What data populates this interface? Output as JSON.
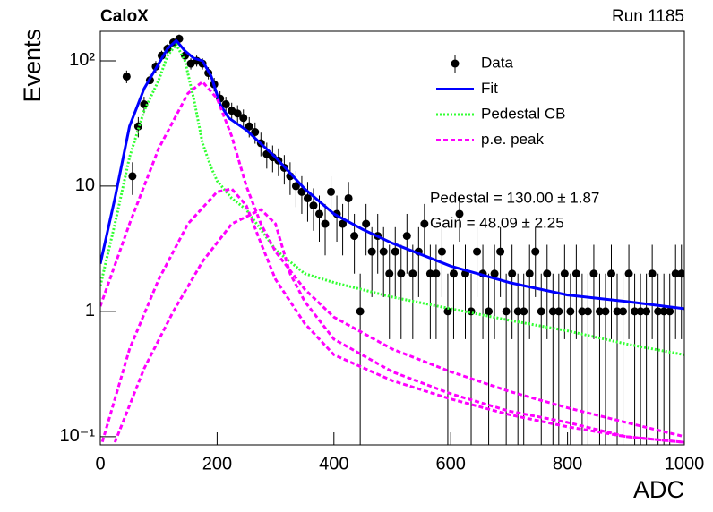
{
  "chart_data": {
    "type": "errorbar",
    "title": "CaloX",
    "subtitle": "Run 1185",
    "x_label": "ADC",
    "y_label": "Events",
    "log_y": true,
    "xlim": [
      0,
      1000
    ],
    "ylim": [
      0.086,
      172
    ],
    "xticks": [
      0,
      200,
      400,
      600,
      800,
      1000
    ],
    "yticks": [
      {
        "value": 0.1,
        "label": "10⁻¹"
      },
      1,
      10,
      {
        "value": 100,
        "label": "10²"
      }
    ],
    "annotations": [
      "Pedestal = 130.00 ± 1.87",
      "Gain = 48.09 ± 2.25"
    ],
    "series": [
      {
        "name": "Data",
        "color": "#000000",
        "style": "points",
        "x": [
          45,
          55,
          65,
          75,
          85,
          95,
          105,
          115,
          125,
          135,
          145,
          155,
          165,
          175,
          185,
          195,
          205,
          215,
          225,
          235,
          245,
          255,
          265,
          275,
          285,
          295,
          305,
          315,
          325,
          335,
          345,
          355,
          365,
          375,
          385,
          395,
          405,
          415,
          425,
          435,
          445,
          455,
          465,
          475,
          485,
          495,
          505,
          515,
          525,
          535,
          545,
          555,
          565,
          575,
          585,
          595,
          605,
          615,
          625,
          635,
          645,
          655,
          665,
          675,
          685,
          695,
          705,
          715,
          725,
          735,
          745,
          755,
          765,
          775,
          785,
          795,
          805,
          815,
          825,
          835,
          845,
          855,
          865,
          875,
          885,
          895,
          905,
          915,
          925,
          935,
          945,
          955,
          965,
          975,
          985,
          995
        ],
        "values": [
          75,
          12,
          30,
          45,
          70,
          90,
          110,
          125,
          140,
          150,
          110,
          95,
          100,
          95,
          80,
          65,
          50,
          45,
          40,
          38,
          35,
          30,
          27,
          22,
          18,
          17,
          16,
          14,
          12,
          10,
          9,
          8,
          7,
          6,
          5,
          9,
          6,
          5,
          8,
          4,
          1,
          5,
          3,
          4,
          3,
          2,
          3,
          2,
          4,
          2,
          3,
          5,
          2,
          2,
          3,
          1,
          2,
          6,
          2,
          1,
          3,
          2,
          1,
          2,
          3,
          1,
          2,
          1,
          1,
          2,
          3,
          1,
          2,
          1,
          1,
          2,
          1,
          2,
          1,
          1,
          2,
          1,
          1,
          2,
          1,
          1,
          2,
          1,
          1,
          1,
          2,
          1,
          1,
          1,
          2,
          2
        ],
        "errors": [
          8.7,
          3.5,
          5.5,
          6.7,
          8.4,
          9.5,
          10.5,
          11.2,
          11.8,
          12.2,
          10.5,
          9.7,
          10,
          9.7,
          8.9,
          8.1,
          7.1,
          6.7,
          6.3,
          6.2,
          5.9,
          5.5,
          5.2,
          4.7,
          4.2,
          4.1,
          4,
          3.7,
          3.5,
          3.2,
          3,
          2.8,
          2.6,
          2.4,
          2.2,
          3,
          2.4,
          2.2,
          2.8,
          2,
          1,
          2.2,
          1.7,
          2,
          1.7,
          1.4,
          1.7,
          1.4,
          2,
          1.4,
          1.7,
          2.2,
          1.4,
          1.4,
          1.7,
          1,
          1.4,
          2.4,
          1.4,
          1,
          1.7,
          1.4,
          1,
          1.4,
          1.7,
          1,
          1.4,
          1,
          1,
          1.4,
          1.7,
          1,
          1.4,
          1,
          1,
          1.4,
          1,
          1.4,
          1,
          1,
          1.4,
          1,
          1,
          1.4,
          1,
          1,
          1.4,
          1,
          1,
          1,
          1.4,
          1,
          1,
          1,
          1.4,
          1.4
        ]
      },
      {
        "name": "Fit",
        "color": "#0000ff",
        "style": "solid",
        "curves": [
          {
            "x": [
              0,
              25,
              50,
              75,
              100,
              115,
              130,
              145,
              160,
              175,
              190,
              205,
              220,
              250,
              300,
              350,
              400,
              450,
              500,
              600,
              700,
              800,
              900,
              1000
            ],
            "values": [
              2.4,
              8,
              30,
              60,
              95,
              125,
              145,
              120,
              105,
              100,
              75,
              45,
              35,
              28,
              17,
              9.5,
              6,
              4.5,
              3.5,
              2.3,
              1.7,
              1.35,
              1.2,
              1.05
            ]
          }
        ]
      },
      {
        "name": "Pedestal CB",
        "color": "#33ff33",
        "style": "dotted",
        "curves": [
          {
            "x": [
              0,
              25,
              50,
              75,
              100,
              115,
              130,
              145,
              160,
              175,
              190,
              200,
              225,
              250,
              300,
              350,
              400,
              500,
              600,
              700,
              800,
              900,
              1000
            ],
            "values": [
              1.6,
              5,
              17,
              40,
              70,
              110,
              135,
              100,
              50,
              22,
              14,
              11,
              8,
              6.5,
              3.1,
              2,
              1.7,
              1.3,
              1.05,
              0.85,
              0.7,
              0.55,
              0.45
            ]
          }
        ]
      },
      {
        "name": "p.e. peak",
        "color": "#ff00ff",
        "style": "dashed",
        "curves": [
          {
            "x": [
              0,
              50,
              100,
              150,
              175,
              200,
              225,
              250,
              275,
              300,
              350,
              400,
              500,
              600,
              700,
              800,
              900,
              1000
            ],
            "values": [
              1.1,
              5,
              20,
              55,
              68,
              50,
              25,
              10,
              5,
              3,
              1.5,
              0.9,
              0.5,
              0.33,
              0.23,
              0.17,
              0.13,
              0.1
            ]
          },
          {
            "x": [
              0,
              50,
              100,
              150,
              200,
              225,
              250,
              275,
              300,
              350,
              400,
              500,
              600,
              700,
              800,
              900,
              1000
            ],
            "values": [
              0.08,
              0.5,
              1.8,
              5,
              9,
              9.5,
              7,
              3.5,
              1.8,
              0.8,
              0.45,
              0.28,
              0.2,
              0.15,
              0.12,
              0.1,
              0.09
            ]
          },
          {
            "x": [
              25,
              75,
              125,
              175,
              225,
              275,
              300,
              325,
              350,
              400,
              500,
              600,
              700,
              800,
              900,
              1000
            ],
            "values": [
              0.09,
              0.35,
              1,
              2.5,
              5,
              6.5,
              5,
              2,
              1.2,
              0.6,
              0.33,
              0.22,
              0.16,
              0.13,
              0.1,
              0.09
            ]
          }
        ]
      }
    ]
  }
}
